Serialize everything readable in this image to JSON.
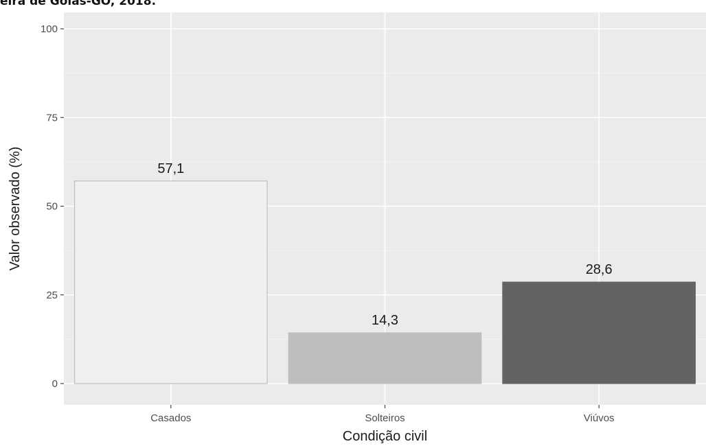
{
  "chart_data": {
    "type": "bar",
    "title": "eira de Goiás-GO, 2018.",
    "xlabel": "Condição civil",
    "ylabel": "Valor observado (%)",
    "categories": [
      "Casados",
      "Solteiros",
      "Viúvos"
    ],
    "values": [
      57.1,
      14.3,
      28.6
    ],
    "value_labels": [
      "57,1",
      "14,3",
      "28,6"
    ],
    "ylim": [
      0,
      100
    ],
    "yticks": [
      0,
      25,
      50,
      75,
      100
    ],
    "ytick_labels": [
      "0",
      "25",
      "50",
      "75",
      "100"
    ],
    "grid": true,
    "legend": "none",
    "colors": {
      "panel_background": "#ebebeb",
      "grid_major": "#ffffff",
      "grid_minor": "#f4f4f4",
      "bars": [
        "#f0f0f0",
        "#bebebe",
        "#636363"
      ],
      "bar_outline": [
        "#bdbdbd",
        "#bebebe",
        "#636363"
      ],
      "tick_text": "#4d4d4d",
      "tick_mark": "#333333"
    }
  }
}
